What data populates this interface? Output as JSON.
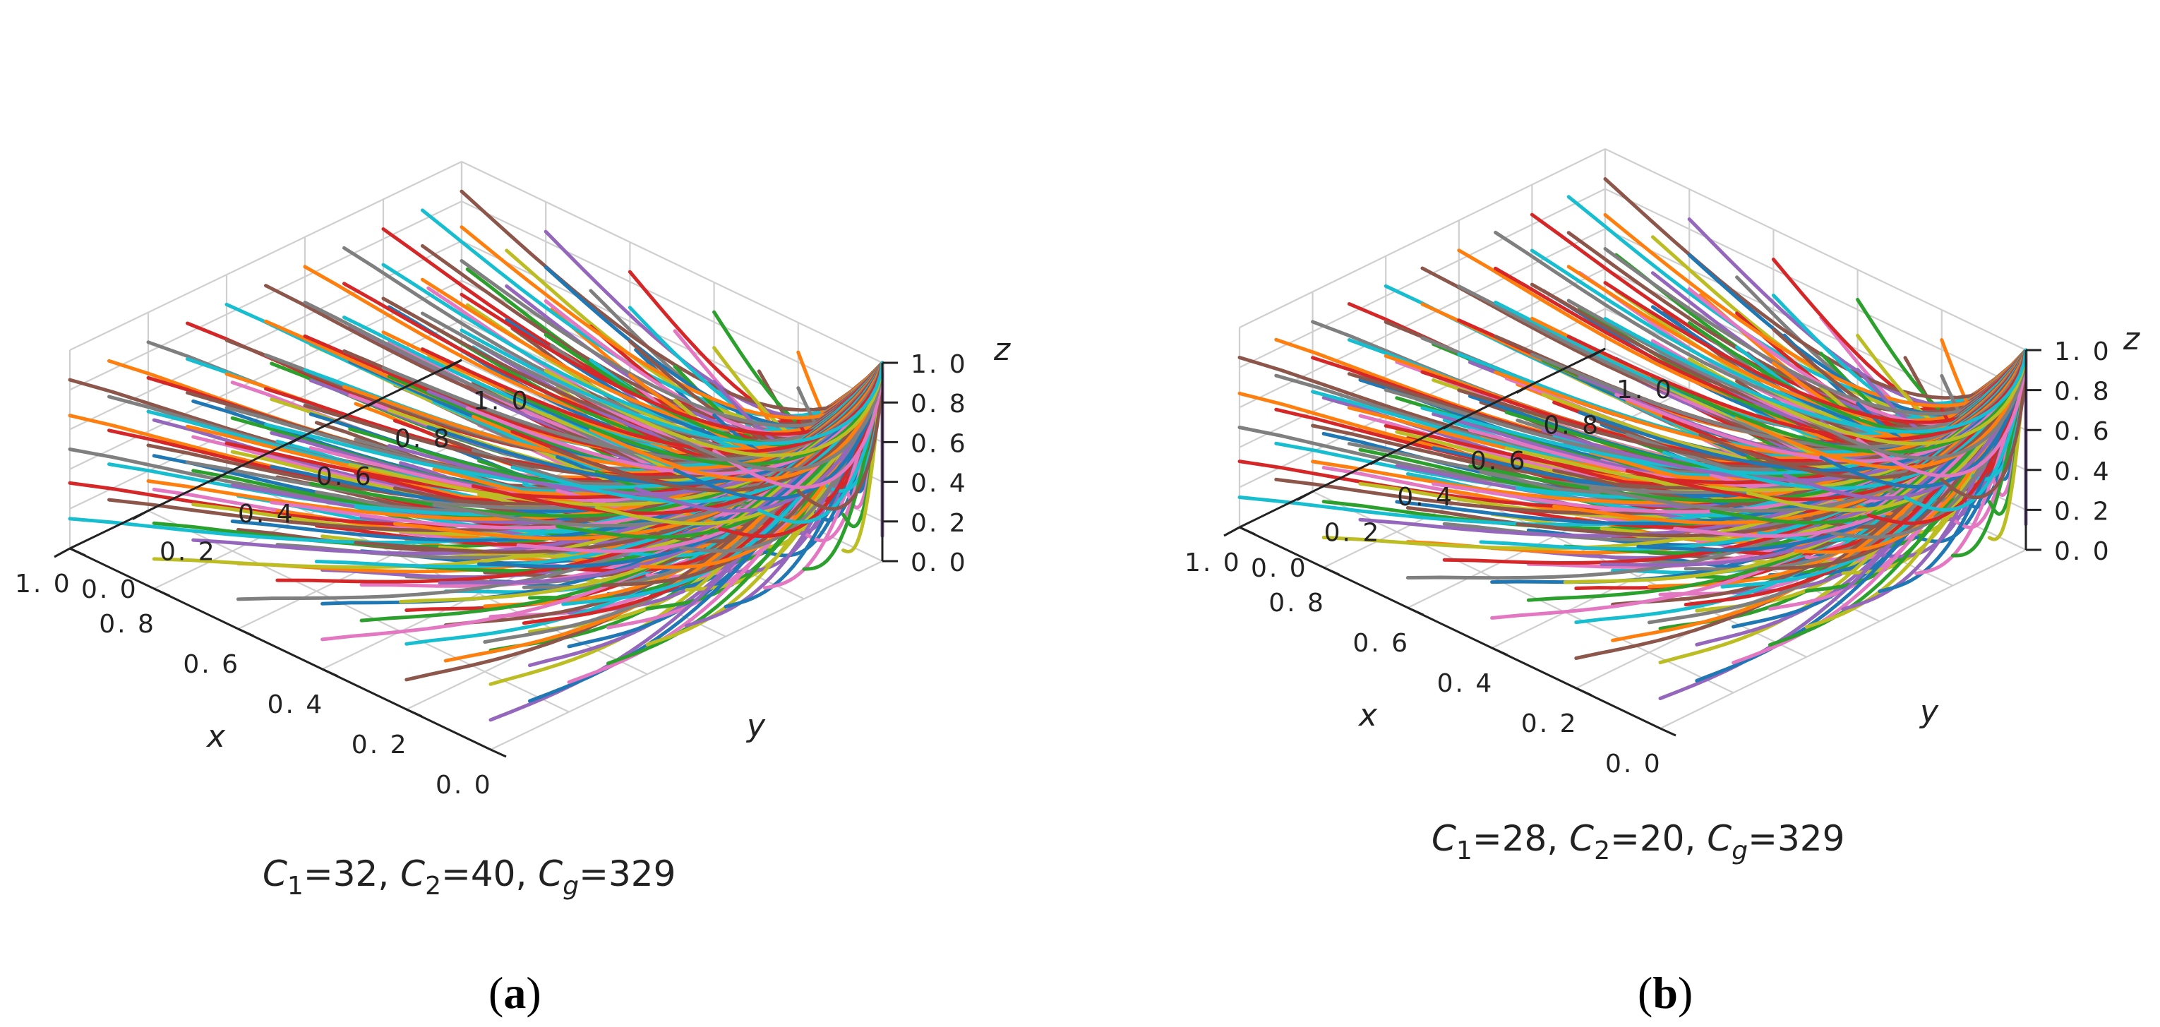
{
  "chart_data": [
    {
      "panel": "(a)",
      "type": "line",
      "projection": "3d",
      "caption": {
        "c1_sym": "C",
        "c1_sub": "1",
        "c1_val": "=32, ",
        "c2_sym": "C",
        "c2_sub": "2",
        "c2_val": "=40, ",
        "cg_sym": "C",
        "cg_sub": "g",
        "cg_val": "=329"
      },
      "xlabel": "x",
      "ylabel": "y",
      "zlabel": "z",
      "xlim": [
        0,
        1
      ],
      "ylim": [
        0,
        1
      ],
      "zlim": [
        0,
        1
      ],
      "xticks": [
        "0. 0",
        "0. 2",
        "0. 4",
        "0. 6",
        "0. 8",
        "1. 0"
      ],
      "yticks": [
        "0. 0",
        "0. 2",
        "0. 4",
        "0. 6",
        "0. 8",
        "1. 0"
      ],
      "zticks": [
        "0. 0",
        "0. 2",
        "0. 4",
        "0. 6",
        "0. 8",
        "1. 0"
      ],
      "grid": true,
      "endpoint": [
        0,
        1,
        1
      ],
      "minimum_z": 0.05,
      "start_x_values": [
        0.0,
        0.1,
        0.2,
        0.3,
        0.4,
        0.5,
        0.6,
        0.7,
        0.8,
        0.9,
        1.0
      ],
      "start_y_values": [
        0.0,
        0.1,
        0.2,
        0.3,
        0.4,
        0.5,
        0.6,
        0.7,
        0.8,
        0.9,
        1.0
      ],
      "start_z_values": [
        0.15,
        0.33,
        0.5,
        0.67,
        0.85
      ]
    },
    {
      "panel": "(b)",
      "type": "line",
      "projection": "3d",
      "caption": {
        "c1_sym": "C",
        "c1_sub": "1",
        "c1_val": "=28, ",
        "c2_sym": "C",
        "c2_sub": "2",
        "c2_val": "=20, ",
        "cg_sym": "C",
        "cg_sub": "g",
        "cg_val": "=329"
      },
      "xlabel": "x",
      "ylabel": "y",
      "zlabel": "z",
      "xlim": [
        0,
        1
      ],
      "ylim": [
        0,
        1
      ],
      "zlim": [
        0,
        1
      ],
      "xticks": [
        "0. 0",
        "0. 2",
        "0. 4",
        "0. 6",
        "0. 8",
        "1. 0"
      ],
      "yticks": [
        "0. 0",
        "0. 2",
        "0. 4",
        "0. 6",
        "0. 8",
        "1. 0"
      ],
      "zticks": [
        "0. 0",
        "0. 2",
        "0. 4",
        "0. 6",
        "0. 8",
        "1. 0"
      ],
      "grid": true,
      "endpoint": [
        0,
        1,
        1
      ],
      "minimum_z": 0.0,
      "start_x_values": [
        0.0,
        0.1,
        0.2,
        0.3,
        0.4,
        0.5,
        0.6,
        0.7,
        0.8,
        0.9,
        1.0
      ],
      "start_y_values": [
        0.0,
        0.1,
        0.2,
        0.3,
        0.4,
        0.5,
        0.6,
        0.7,
        0.8,
        0.9,
        1.0
      ],
      "start_z_values": [
        0.15,
        0.33,
        0.5,
        0.67,
        0.85
      ]
    }
  ],
  "series_colors": [
    "#1f77b4",
    "#ff7f0e",
    "#2ca02c",
    "#d62728",
    "#9467bd",
    "#8c564b",
    "#e377c2",
    "#7f7f7f",
    "#bcbd22",
    "#17becf"
  ],
  "panel_labels": {
    "a": {
      "open": "(",
      "letter": "a",
      "close": ")"
    },
    "b": {
      "open": "(",
      "letter": "b",
      "close": ")"
    }
  }
}
